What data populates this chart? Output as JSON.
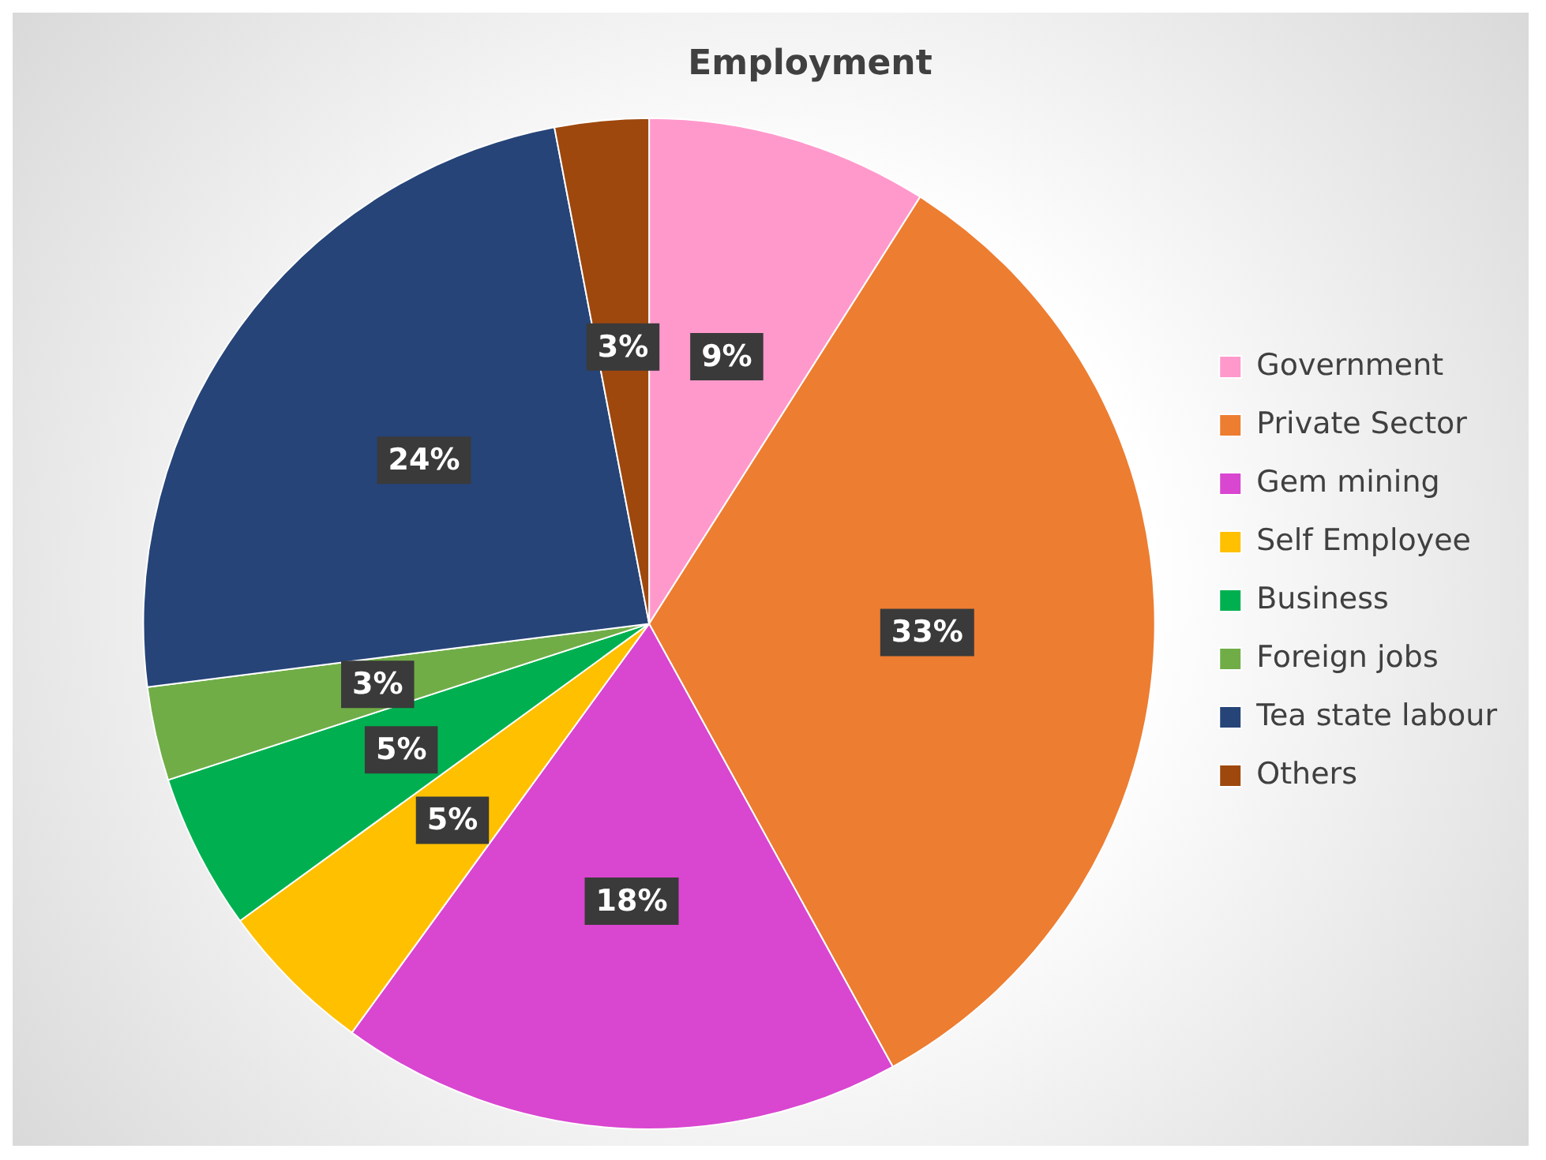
{
  "chart_data": {
    "type": "pie",
    "title": "Employment",
    "categories": [
      "Government",
      "Private Sector",
      "Gem mining",
      "Self Employee",
      "Business",
      "Foreign jobs",
      "Tea state labour",
      "Others"
    ],
    "values": [
      9,
      33,
      18,
      5,
      5,
      3,
      24,
      3
    ],
    "colors": [
      "#ff99cc",
      "#ed7d31",
      "#d946d0",
      "#ffc000",
      "#00b050",
      "#70ad47",
      "#264478",
      "#9e480e"
    ],
    "value_labels": [
      "9%",
      "33%",
      "18%",
      "5%",
      "5%",
      "3%",
      "24%",
      "3%"
    ],
    "legend": "right"
  }
}
